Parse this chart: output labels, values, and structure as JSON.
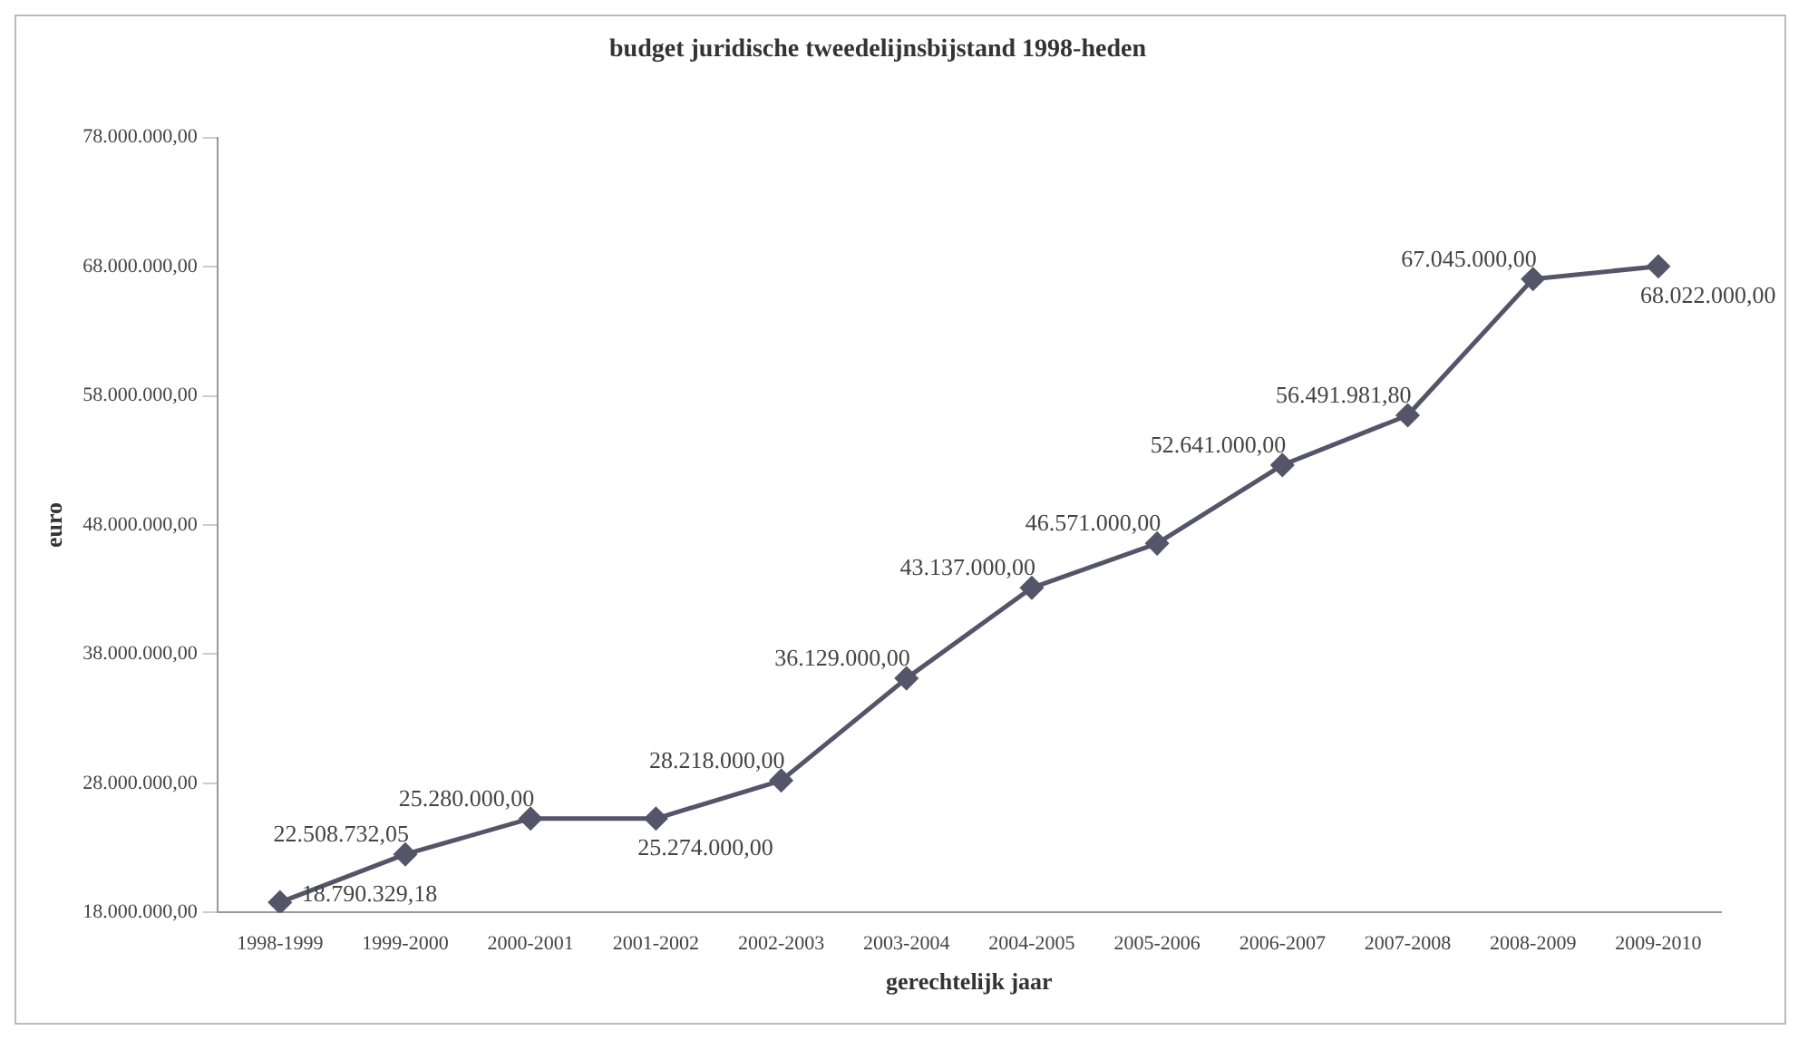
{
  "chart_data": {
    "type": "line",
    "title": "budget juridische tweedelijnsbijstand 1998-heden",
    "xlabel": "gerechtelijk jaar",
    "ylabel": "euro",
    "categories": [
      "1998-1999",
      "1999-2000",
      "2000-2001",
      "2001-2002",
      "2002-2003",
      "2003-2004",
      "2004-2005",
      "2005-2006",
      "2006-2007",
      "2007-2008",
      "2008-2009",
      "2009-2010"
    ],
    "series": [
      {
        "color": "#55556a",
        "values": [
          18790329.18,
          22508732.05,
          25280000,
          25274000,
          28218000,
          36129000,
          43137000,
          46571000,
          52641000,
          56491981.8,
          67045000,
          68022000
        ],
        "value_labels": [
          "18.790.329,18",
          "22.508.732,05",
          "25.280.000,00",
          "25.274.000,00",
          "28.218.000,00",
          "36.129.000,00",
          "43.137.000,00",
          "46.571.000,00",
          "52.641.000,00",
          "56.491.981,80",
          "67.045.000,00",
          "68.022.000,00"
        ]
      }
    ],
    "ylim": [
      18000000,
      78000000
    ],
    "yticks": [
      {
        "value": 18000000,
        "label": "18.000.000,00"
      },
      {
        "value": 28000000,
        "label": "28.000.000,00"
      },
      {
        "value": 38000000,
        "label": "38.000.000,00"
      },
      {
        "value": 48000000,
        "label": "48.000.000,00"
      },
      {
        "value": 58000000,
        "label": "58.000.000,00"
      },
      {
        "value": 68000000,
        "label": "68.000.000,00"
      },
      {
        "value": 78000000,
        "label": "78.000.000,00"
      }
    ],
    "grid": false,
    "legend": false,
    "marker": "diamond",
    "line_style": "solid"
  }
}
